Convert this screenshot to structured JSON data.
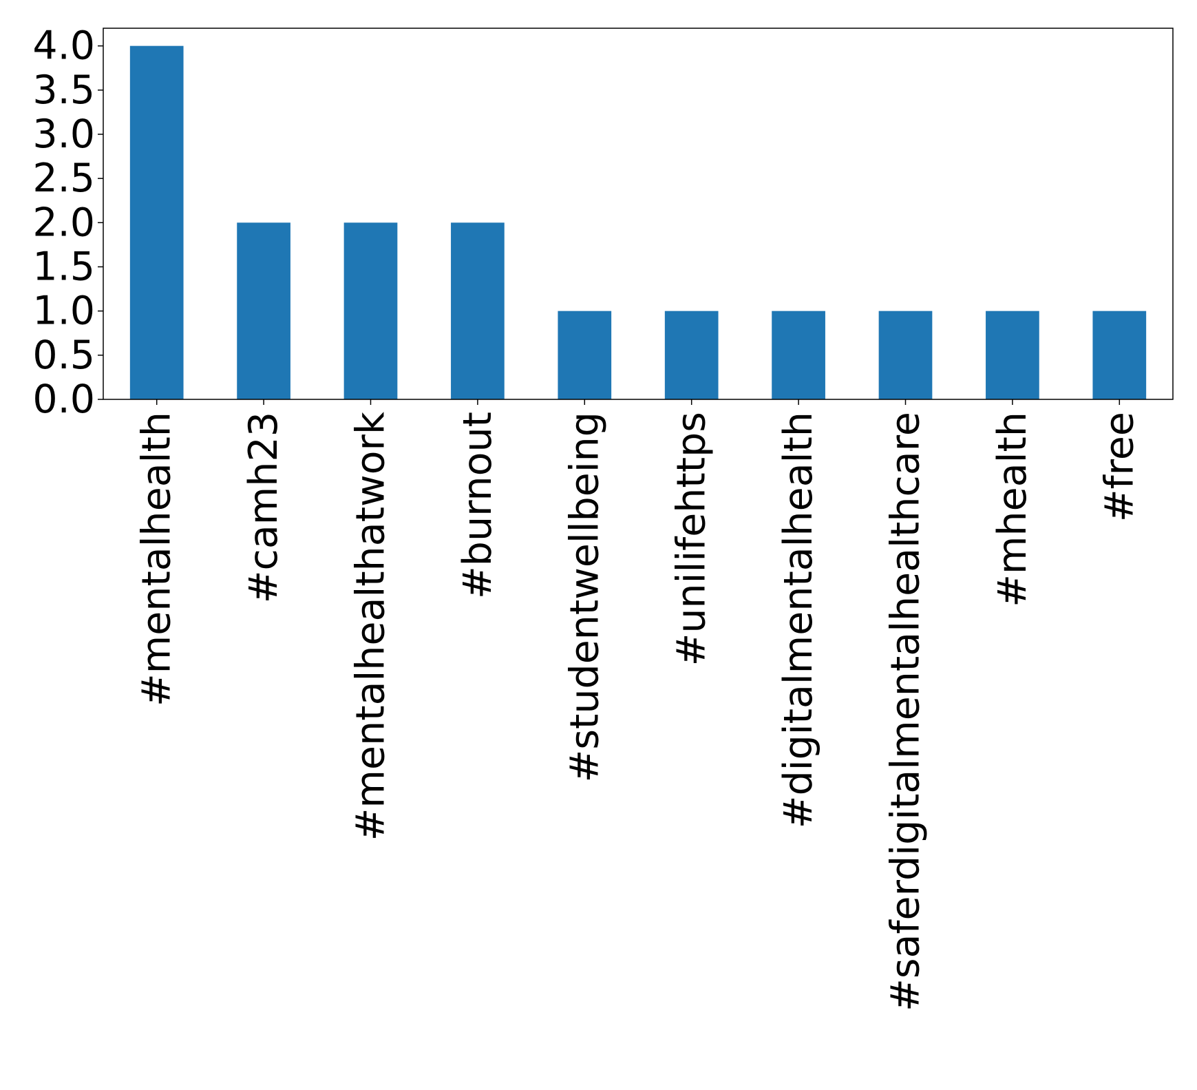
{
  "chart_data": {
    "type": "bar",
    "categories": [
      "#mentalhealth",
      "#camh23",
      "#mentalhealthatwork",
      "#burnout",
      "#studentwellbeing",
      "#unilifehttps",
      "#digitalmentalhealth",
      "#saferdigitalmentalhealthcare",
      "#mhealth",
      "#free"
    ],
    "values": [
      4,
      2,
      2,
      2,
      1,
      1,
      1,
      1,
      1,
      1
    ],
    "title": "",
    "xlabel": "",
    "ylabel": "",
    "ylim": [
      0,
      4.2
    ],
    "yticks": [
      "0.0",
      "0.5",
      "1.0",
      "1.5",
      "2.0",
      "2.5",
      "3.0",
      "3.5",
      "4.0"
    ],
    "bar_color": "#1f77b4",
    "grid": false,
    "legend": "none",
    "xtick_rotation": "vertical"
  }
}
